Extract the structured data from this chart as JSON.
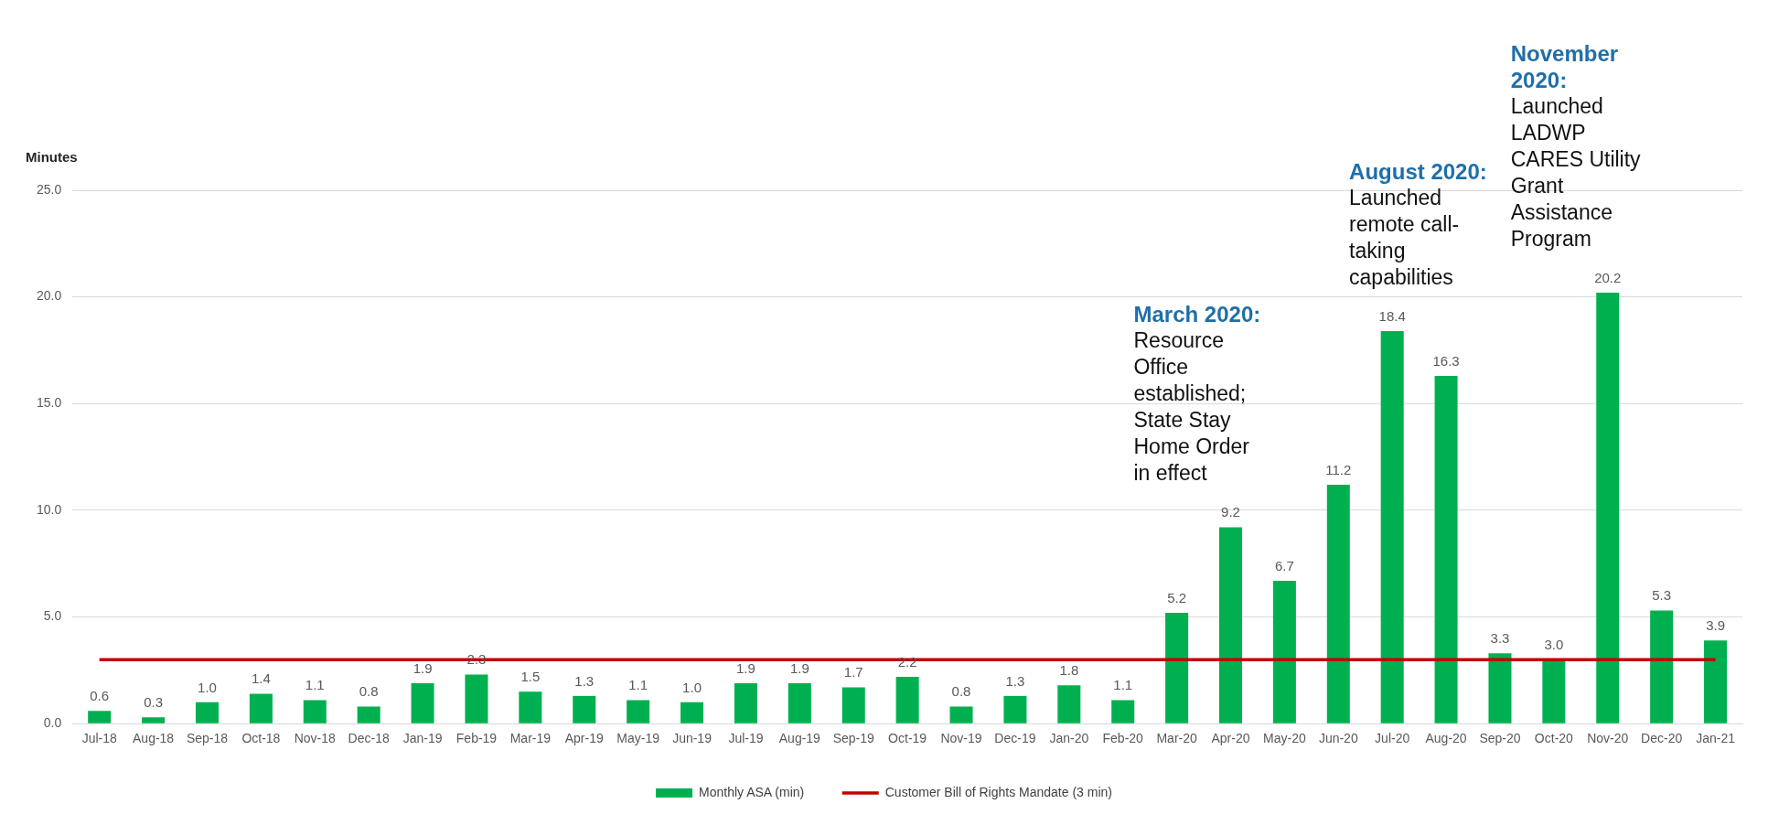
{
  "chart_data": {
    "type": "bar",
    "ylabel": "Minutes",
    "categories": [
      "Jul-18",
      "Aug-18",
      "Sep-18",
      "Oct-18",
      "Nov-18",
      "Dec-18",
      "Jan-19",
      "Feb-19",
      "Mar-19",
      "Apr-19",
      "May-19",
      "Jun-19",
      "Jul-19",
      "Aug-19",
      "Sep-19",
      "Oct-19",
      "Nov-19",
      "Dec-19",
      "Jan-20",
      "Feb-20",
      "Mar-20",
      "Apr-20",
      "May-20",
      "Jun-20",
      "Jul-20",
      "Aug-20",
      "Sep-20",
      "Oct-20",
      "Nov-20",
      "Dec-20",
      "Jan-21"
    ],
    "series": [
      {
        "name": "Monthly ASA (min)",
        "color": "#00b050",
        "values": [
          0.6,
          0.3,
          1.0,
          1.4,
          1.1,
          0.8,
          1.9,
          2.3,
          1.5,
          1.3,
          1.1,
          1.0,
          1.9,
          1.9,
          1.7,
          2.2,
          0.8,
          1.3,
          1.8,
          1.1,
          5.2,
          9.2,
          6.7,
          11.2,
          18.4,
          16.3,
          3.3,
          3.0,
          20.2,
          5.3,
          3.9
        ],
        "value_labels": [
          "0.6",
          "0.3",
          "1.0",
          "1.4",
          "1.1",
          "0.8",
          "1.9",
          "2.3",
          "1.5",
          "1.3",
          "1.1",
          "1.0",
          "1.9",
          "1.9",
          "1.7",
          "2.2",
          "0.8",
          "1.3",
          "1.8",
          "1.1",
          "5.2",
          "9.2",
          "6.7",
          "11.2",
          "18.4",
          "16.3",
          "3.3",
          "3.0",
          "20.2",
          "5.3",
          "3.9"
        ]
      },
      {
        "name": "Customer Bill of Rights Mandate (3 min)",
        "type": "line",
        "color": "#c00000",
        "marker": "none",
        "values": [
          3,
          3,
          3,
          3,
          3,
          3,
          3,
          3,
          3,
          3,
          3,
          3,
          3,
          3,
          3,
          3,
          3,
          3,
          3,
          3,
          3,
          3,
          3,
          3,
          3,
          3,
          3,
          3,
          3,
          3,
          3
        ]
      }
    ],
    "ylim": [
      0,
      25
    ],
    "yticks": [
      {
        "value": 0,
        "label": "0.0"
      },
      {
        "value": 5,
        "label": "5.0"
      },
      {
        "value": 10,
        "label": "10.0"
      },
      {
        "value": 15,
        "label": "15.0"
      },
      {
        "value": 20,
        "label": "20.0"
      },
      {
        "value": 25,
        "label": "25.0"
      }
    ],
    "grid": "y",
    "legend": "bottom",
    "annotations": [
      "March 2020: Resource Office established; State Stay Home Order in effect",
      "August 2020: Launched remote call-taking capabilities",
      "November 2020: Launched LADWP CARES Utility Grant Assistance Program"
    ]
  }
}
